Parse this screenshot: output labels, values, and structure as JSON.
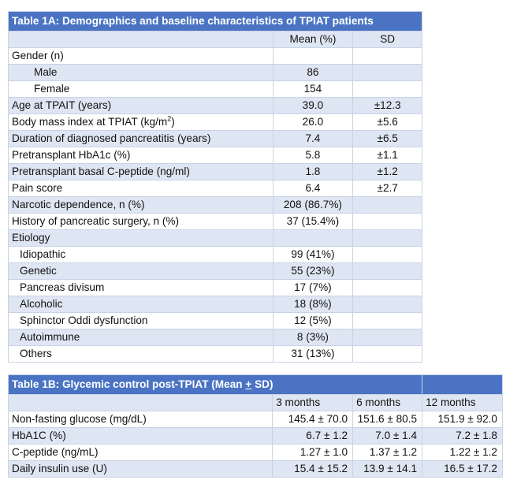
{
  "table_a": {
    "title": "Table 1A: Demographics and baseline characteristics of TPIAT patients",
    "col_mean": "Mean (%)",
    "col_sd": "SD",
    "rows": [
      {
        "label": "Gender (n)",
        "mean": "",
        "sd": ""
      },
      {
        "label": "Male",
        "mean": "86",
        "sd": ""
      },
      {
        "label": "Female",
        "mean": "154",
        "sd": ""
      },
      {
        "label": "Age at TPAIT (years)",
        "mean": "39.0",
        "sd": "±12.3"
      },
      {
        "label": "Body mass index at TPIAT (kg/m",
        "sup": "2",
        "label_end": ")",
        "mean": "26.0",
        "sd": "±5.6"
      },
      {
        "label": "Duration of diagnosed pancreatitis (years)",
        "mean": "7.4",
        "sd": "±6.5"
      },
      {
        "label": "Pretransplant HbA1c (%)",
        "mean": "5.8",
        "sd": "±1.1"
      },
      {
        "label": "Pretransplant basal C-peptide (ng/ml)",
        "mean": "1.8",
        "sd": "±1.2"
      },
      {
        "label": "Pain score",
        "mean": "6.4",
        "sd": "±2.7"
      },
      {
        "label": "Narcotic dependence, n (%)",
        "mean": "208 (86.7%)",
        "sd": ""
      },
      {
        "label": "History of pancreatic surgery, n (%)",
        "mean": "37 (15.4%)",
        "sd": ""
      },
      {
        "label": "Etiology",
        "mean": "",
        "sd": ""
      },
      {
        "label": "Idiopathic",
        "mean": "99 (41%)",
        "sd": ""
      },
      {
        "label": "Genetic",
        "mean": "55 (23%)",
        "sd": ""
      },
      {
        "label": "Pancreas divisum",
        "mean": "17 (7%)",
        "sd": ""
      },
      {
        "label": "Alcoholic",
        "mean": "18 (8%)",
        "sd": ""
      },
      {
        "label": "Sphinctor Oddi dysfunction",
        "mean": "12 (5%)",
        "sd": ""
      },
      {
        "label": "Autoimmune",
        "mean": "8 (3%)",
        "sd": ""
      },
      {
        "label": "Others",
        "mean": "31 (13%)",
        "sd": ""
      }
    ]
  },
  "table_b": {
    "title": "Table 1B: Glycemic control post-TPIAT (Mean ",
    "title_pm": "+",
    "title_end": " SD)",
    "col_3m": "3 months",
    "col_6m": "6 months",
    "col_12m": "12 months",
    "rows": [
      {
        "label": "Non-fasting glucose (mg/dL)",
        "m3": "145.4 ± 70.0",
        "m6": "151.6 ± 80.5",
        "m12": "151.9 ± 92.0"
      },
      {
        "label": "HbA1C (%)",
        "m3": "6.7 ± 1.2",
        "m6": "7.0 ± 1.4",
        "m12": "7.2 ± 1.8"
      },
      {
        "label": "C-peptide (ng/mL)",
        "m3": "1.27 ± 1.0",
        "m6": "1.37 ± 1.2",
        "m12": "1.22 ± 1.2"
      },
      {
        "label": "Daily insulin use (U)",
        "m3": "15.4 ± 15.2",
        "m6": "13.9 ± 14.1",
        "m12": "16.5 ± 17.2"
      }
    ]
  }
}
